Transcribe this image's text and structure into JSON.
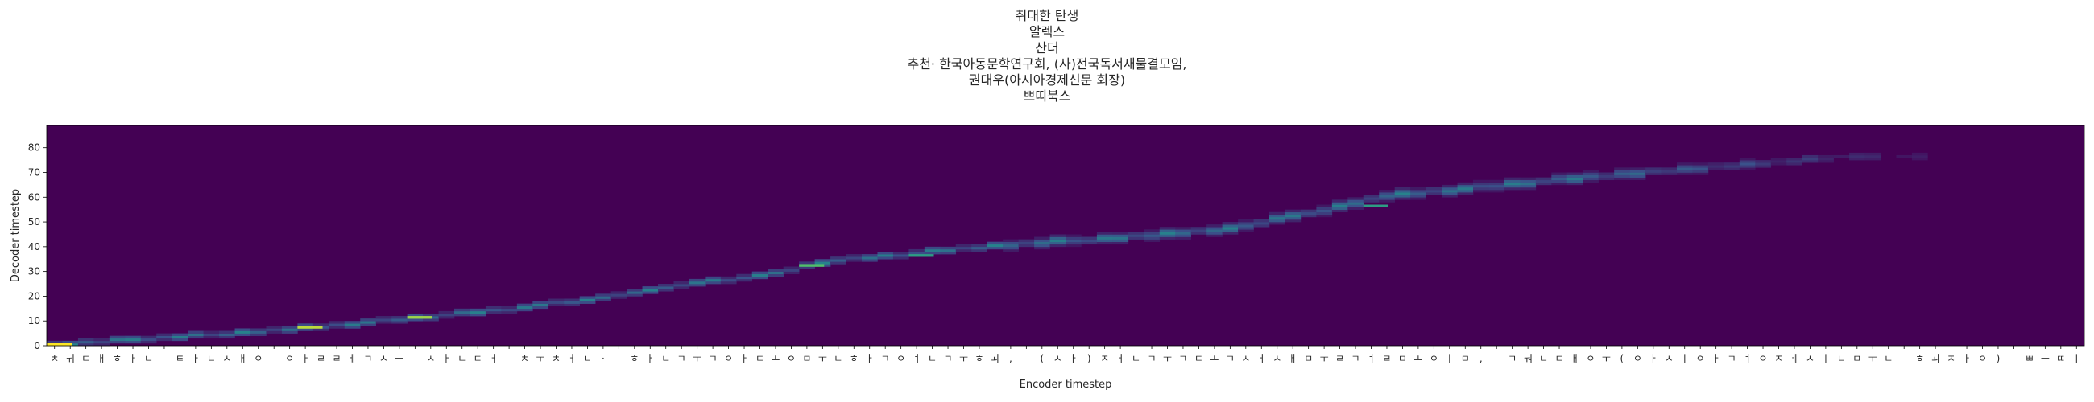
{
  "chart_data": {
    "type": "heatmap",
    "title_lines": [
      "취대한 탄생",
      "알렉스",
      "산더",
      "추천· 한국아동문학연구회, (사)전국독서새물결모임,",
      "권대우(아시아경제신문 회장)",
      "쁘띠북스"
    ],
    "xlabel": "Encoder timestep",
    "ylabel": "Decoder timestep",
    "ylim": [
      0,
      89
    ],
    "yticks": [
      0,
      10,
      20,
      30,
      40,
      50,
      60,
      70,
      80
    ],
    "colormap": "viridis",
    "background_color": "#440154",
    "x_tick_labels": [
      "ㅊ",
      "ㅟ",
      "ㄷ",
      "ㅐ",
      "ㅎ",
      "ㅏ",
      "ㄴ",
      " ",
      "ㅌ",
      "ㅏ",
      "ㄴ",
      "ㅅ",
      "ㅐ",
      "ㅇ",
      " ",
      "ㅇ",
      "ㅏ",
      "ㄹ",
      "ㄹ",
      "ㅔ",
      "ㄱ",
      "ㅅ",
      "ㅡ",
      " ",
      "ㅅ",
      "ㅏ",
      "ㄴ",
      "ㄷ",
      "ㅓ",
      " ",
      "ㅊ",
      "ㅜ",
      "ㅊ",
      "ㅓ",
      "ㄴ",
      "·",
      " ",
      "ㅎ",
      "ㅏ",
      "ㄴ",
      "ㄱ",
      "ㅜ",
      "ㄱ",
      "ㅇ",
      "ㅏ",
      "ㄷ",
      "ㅗ",
      "ㅇ",
      "ㅁ",
      "ㅜ",
      "ㄴ",
      "ㅎ",
      "ㅏ",
      "ㄱ",
      "ㅇ",
      "ㅕ",
      "ㄴ",
      "ㄱ",
      "ㅜ",
      "ㅎ",
      "ㅚ",
      ",",
      " ",
      "(",
      "ㅅ",
      "ㅏ",
      ")",
      "ㅈ",
      "ㅓ",
      "ㄴ",
      "ㄱ",
      "ㅜ",
      "ㄱ",
      "ㄷ",
      "ㅗ",
      "ㄱ",
      "ㅅ",
      "ㅓ",
      "ㅅ",
      "ㅐ",
      "ㅁ",
      "ㅜ",
      "ㄹ",
      "ㄱ",
      "ㅕ",
      "ㄹ",
      "ㅁ",
      "ㅗ",
      "ㅇ",
      "ㅣ",
      "ㅁ",
      ",",
      " ",
      "ㄱ",
      "ㅝ",
      "ㄴ",
      "ㄷ",
      "ㅐ",
      "ㅇ",
      "ㅜ",
      "(",
      "ㅇ",
      "ㅏ",
      "ㅅ",
      "ㅣ",
      "ㅇ",
      "ㅏ",
      "ㄱ",
      "ㅕ",
      "ㅇ",
      "ㅈ",
      "ㅔ",
      "ㅅ",
      "ㅣ",
      "ㄴ",
      "ㅁ",
      "ㅜ",
      "ㄴ",
      " ",
      "ㅎ",
      "ㅚ",
      "ㅈ",
      "ㅏ",
      "ㅇ",
      ")",
      " ",
      "ㅃ",
      "ㅡ",
      "ㄸ",
      "ㅣ"
    ],
    "alignment_path": [
      [
        0,
        0
      ],
      [
        5,
        2
      ],
      [
        10,
        4
      ],
      [
        15,
        6
      ],
      [
        20,
        9
      ],
      [
        25,
        12
      ],
      [
        30,
        15
      ],
      [
        35,
        19
      ],
      [
        40,
        24
      ],
      [
        45,
        28
      ],
      [
        50,
        34
      ],
      [
        55,
        37
      ],
      [
        60,
        40
      ],
      [
        65,
        42
      ],
      [
        70,
        44
      ],
      [
        75,
        47
      ],
      [
        80,
        53
      ],
      [
        85,
        60
      ],
      [
        90,
        63
      ],
      [
        95,
        66
      ],
      [
        100,
        69
      ],
      [
        105,
        71
      ],
      [
        110,
        74
      ],
      [
        115,
        76
      ],
      [
        120,
        76
      ],
      [
        125,
        76
      ],
      [
        131,
        76
      ]
    ],
    "bright_spots": [
      {
        "x": 0,
        "y": 0,
        "weight": 1.0
      },
      {
        "x": 16,
        "y": 7,
        "weight": 0.9
      },
      {
        "x": 23,
        "y": 11,
        "weight": 0.85
      },
      {
        "x": 48,
        "y": 32,
        "weight": 0.7
      },
      {
        "x": 55,
        "y": 36,
        "weight": 0.55
      },
      {
        "x": 84,
        "y": 56,
        "weight": 0.55
      }
    ]
  }
}
